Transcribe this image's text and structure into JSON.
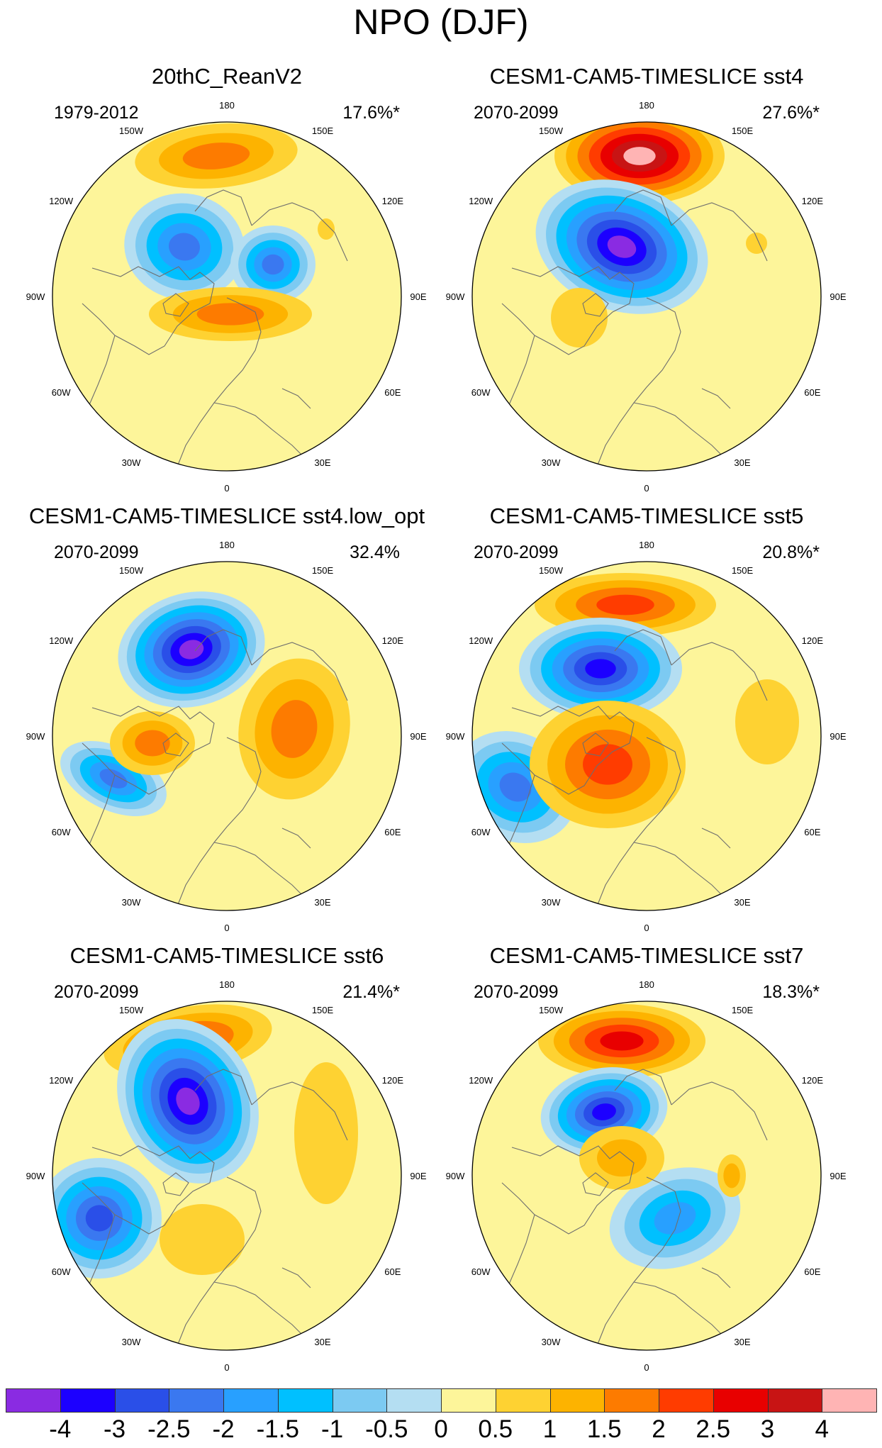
{
  "title": "NPO (DJF)",
  "lon_labels": [
    "180",
    "150E",
    "120E",
    "90E",
    "60E",
    "30E",
    "0",
    "30W",
    "60W",
    "90W",
    "120W",
    "150W"
  ],
  "panels": [
    {
      "title": "20thC_ReanV2",
      "period": "1979-2012",
      "variance": "17.6%*"
    },
    {
      "title": "CESM1-CAM5-TIMESLICE sst4",
      "period": "2070-2099",
      "variance": "27.6%*"
    },
    {
      "title": "CESM1-CAM5-TIMESLICE sst4.low_opt",
      "period": "2070-2099",
      "variance": "32.4%"
    },
    {
      "title": "CESM1-CAM5-TIMESLICE sst5",
      "period": "2070-2099",
      "variance": "20.8%*"
    },
    {
      "title": "CESM1-CAM5-TIMESLICE sst6",
      "period": "2070-2099",
      "variance": "21.4%*"
    },
    {
      "title": "CESM1-CAM5-TIMESLICE sst7",
      "period": "2070-2099",
      "variance": "18.3%*"
    }
  ],
  "colorbar": {
    "colors": [
      "#8a2be2",
      "#1c00ff",
      "#2a4fe8",
      "#3a78f0",
      "#28a0ff",
      "#00c0ff",
      "#7ccaf2",
      "#b4def2",
      "#fdf59a",
      "#fed232",
      "#fdb300",
      "#fd7b00",
      "#ff3c00",
      "#e80000",
      "#c81414",
      "#ffb4b4"
    ],
    "ticks": [
      "-4",
      "-3",
      "-2.5",
      "-2",
      "-1.5",
      "-1",
      "-0.5",
      "0",
      "0.5",
      "1",
      "1.5",
      "2",
      "2.5",
      "3",
      "4"
    ]
  }
}
